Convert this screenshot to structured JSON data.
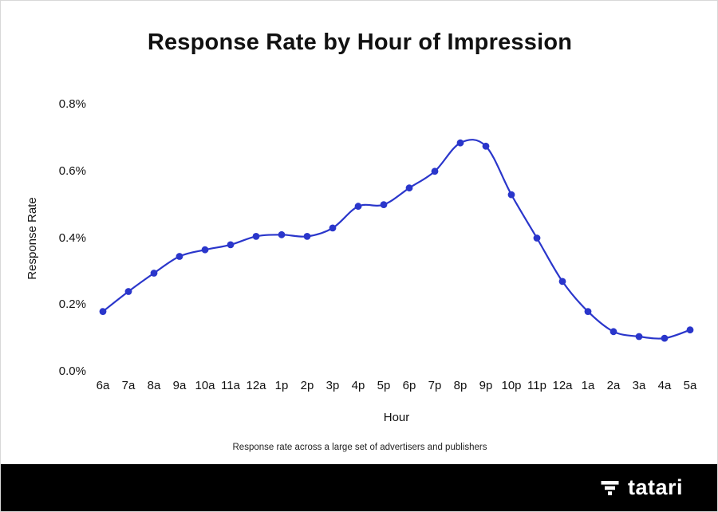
{
  "chart_data": {
    "type": "line",
    "title": "Response Rate by Hour of Impression",
    "xlabel": "Hour",
    "ylabel": "Response Rate",
    "caption": "Response rate across a large set of advertisers and publishers",
    "categories": [
      "6a",
      "7a",
      "8a",
      "9a",
      "10a",
      "11a",
      "12a",
      "1p",
      "2p",
      "3p",
      "4p",
      "5p",
      "6p",
      "7p",
      "8p",
      "9p",
      "10p",
      "11p",
      "12a",
      "1a",
      "2a",
      "3a",
      "4a",
      "5a"
    ],
    "values": [
      0.18,
      0.24,
      0.295,
      0.345,
      0.365,
      0.38,
      0.405,
      0.41,
      0.405,
      0.43,
      0.495,
      0.5,
      0.55,
      0.6,
      0.685,
      0.675,
      0.53,
      0.4,
      0.27,
      0.18,
      0.12,
      0.105,
      0.1,
      0.125
    ],
    "unit": "%",
    "ylim": [
      0.0,
      0.8
    ],
    "yticks": [
      0.0,
      0.2,
      0.4,
      0.6,
      0.8
    ],
    "ytick_labels": [
      "0.0%",
      "0.2%",
      "0.4%",
      "0.6%",
      "0.8%"
    ],
    "line_color": "#2a36cb",
    "marker_color": "#2a36cb",
    "grid": false,
    "legend": false
  },
  "footer": {
    "brand": "tatari",
    "background": "#000000",
    "text_color": "#ffffff"
  }
}
